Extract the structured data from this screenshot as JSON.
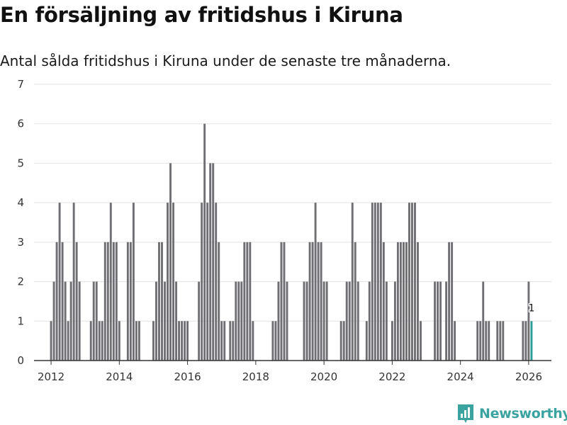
{
  "title": "En försäljning av fritidshus i Kiruna",
  "subtitle": "Antal sålda fritidshus i Kiruna under de senaste tre månaderna.",
  "brand": {
    "name": "Newsworthy",
    "icon": "newsworthy-logo-icon"
  },
  "colors": {
    "bar": "#6e6e73",
    "highlight": "#2a9d98",
    "grid": "#e3e3e3",
    "axis": "#333333",
    "brand": "#3aa3a0"
  },
  "chart_data": {
    "type": "bar",
    "ylim": [
      0,
      7
    ],
    "y_ticks": [
      0,
      1,
      2,
      3,
      4,
      5,
      6,
      7
    ],
    "x_ticks": [
      "2012",
      "2014",
      "2016",
      "2018",
      "2020",
      "2022",
      "2024",
      "2026"
    ],
    "xlim": [
      "2011-07",
      "2026-09"
    ],
    "grid": true,
    "series": [
      {
        "values": [
          [
            "2012-01",
            1
          ],
          [
            "2012-02",
            2
          ],
          [
            "2012-03",
            3
          ],
          [
            "2012-04",
            4
          ],
          [
            "2012-05",
            3
          ],
          [
            "2012-06",
            2
          ],
          [
            "2012-07",
            1
          ],
          [
            "2012-08",
            2
          ],
          [
            "2012-09",
            4
          ],
          [
            "2012-10",
            3
          ],
          [
            "2012-11",
            2
          ],
          [
            "2013-03",
            1
          ],
          [
            "2013-04",
            2
          ],
          [
            "2013-05",
            2
          ],
          [
            "2013-06",
            1
          ],
          [
            "2013-07",
            1
          ],
          [
            "2013-08",
            3
          ],
          [
            "2013-09",
            3
          ],
          [
            "2013-10",
            4
          ],
          [
            "2013-11",
            3
          ],
          [
            "2013-12",
            3
          ],
          [
            "2014-01",
            1
          ],
          [
            "2014-04",
            3
          ],
          [
            "2014-05",
            3
          ],
          [
            "2014-06",
            4
          ],
          [
            "2014-07",
            1
          ],
          [
            "2014-08",
            1
          ],
          [
            "2015-01",
            1
          ],
          [
            "2015-02",
            2
          ],
          [
            "2015-03",
            3
          ],
          [
            "2015-04",
            3
          ],
          [
            "2015-05",
            2
          ],
          [
            "2015-06",
            4
          ],
          [
            "2015-07",
            5
          ],
          [
            "2015-08",
            4
          ],
          [
            "2015-09",
            2
          ],
          [
            "2015-10",
            1
          ],
          [
            "2015-11",
            1
          ],
          [
            "2015-12",
            1
          ],
          [
            "2016-01",
            1
          ],
          [
            "2016-05",
            2
          ],
          [
            "2016-06",
            4
          ],
          [
            "2016-07",
            6
          ],
          [
            "2016-08",
            4
          ],
          [
            "2016-09",
            5
          ],
          [
            "2016-10",
            5
          ],
          [
            "2016-11",
            4
          ],
          [
            "2016-12",
            3
          ],
          [
            "2017-01",
            1
          ],
          [
            "2017-02",
            1
          ],
          [
            "2017-04",
            1
          ],
          [
            "2017-05",
            1
          ],
          [
            "2017-06",
            2
          ],
          [
            "2017-07",
            2
          ],
          [
            "2017-08",
            2
          ],
          [
            "2017-09",
            3
          ],
          [
            "2017-10",
            3
          ],
          [
            "2017-11",
            3
          ],
          [
            "2017-12",
            1
          ],
          [
            "2018-07",
            1
          ],
          [
            "2018-08",
            1
          ],
          [
            "2018-09",
            2
          ],
          [
            "2018-10",
            3
          ],
          [
            "2018-11",
            3
          ],
          [
            "2018-12",
            2
          ],
          [
            "2019-06",
            2
          ],
          [
            "2019-07",
            2
          ],
          [
            "2019-08",
            3
          ],
          [
            "2019-09",
            3
          ],
          [
            "2019-10",
            4
          ],
          [
            "2019-11",
            3
          ],
          [
            "2019-12",
            3
          ],
          [
            "2020-01",
            2
          ],
          [
            "2020-02",
            2
          ],
          [
            "2020-07",
            1
          ],
          [
            "2020-08",
            1
          ],
          [
            "2020-09",
            2
          ],
          [
            "2020-10",
            2
          ],
          [
            "2020-11",
            4
          ],
          [
            "2020-12",
            3
          ],
          [
            "2021-01",
            2
          ],
          [
            "2021-04",
            1
          ],
          [
            "2021-05",
            2
          ],
          [
            "2021-06",
            4
          ],
          [
            "2021-07",
            4
          ],
          [
            "2021-08",
            4
          ],
          [
            "2021-09",
            4
          ],
          [
            "2021-10",
            3
          ],
          [
            "2021-11",
            2
          ],
          [
            "2022-01",
            1
          ],
          [
            "2022-02",
            2
          ],
          [
            "2022-03",
            3
          ],
          [
            "2022-04",
            3
          ],
          [
            "2022-05",
            3
          ],
          [
            "2022-06",
            3
          ],
          [
            "2022-07",
            4
          ],
          [
            "2022-08",
            4
          ],
          [
            "2022-09",
            4
          ],
          [
            "2022-10",
            3
          ],
          [
            "2022-11",
            1
          ],
          [
            "2023-04",
            2
          ],
          [
            "2023-05",
            2
          ],
          [
            "2023-06",
            2
          ],
          [
            "2023-08",
            2
          ],
          [
            "2023-09",
            3
          ],
          [
            "2023-10",
            3
          ],
          [
            "2023-11",
            1
          ],
          [
            "2024-07",
            1
          ],
          [
            "2024-08",
            1
          ],
          [
            "2024-09",
            2
          ],
          [
            "2024-10",
            1
          ],
          [
            "2024-11",
            1
          ],
          [
            "2025-02",
            1
          ],
          [
            "2025-03",
            1
          ],
          [
            "2025-04",
            1
          ],
          [
            "2025-11",
            1
          ],
          [
            "2025-12",
            1
          ],
          [
            "2026-01",
            2
          ],
          [
            "2026-02",
            1
          ]
        ]
      }
    ],
    "highlight": {
      "x": "2026-02",
      "value": 1,
      "label": "1"
    }
  }
}
